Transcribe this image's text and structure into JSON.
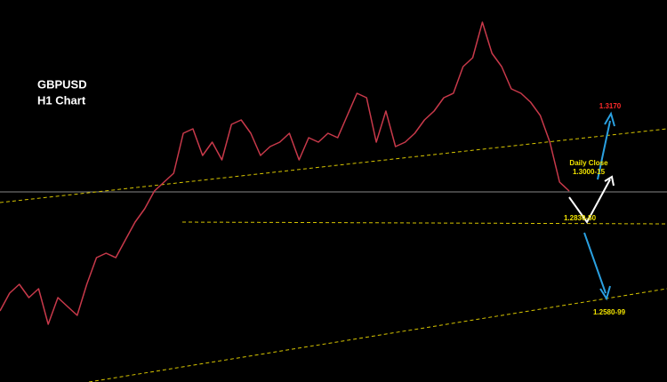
{
  "chart_data": {
    "type": "line",
    "title": "GBPUSD",
    "subtitle": "H1 Chart",
    "values": [
      1.233,
      1.243,
      1.248,
      1.2405,
      1.2455,
      1.2255,
      1.2405,
      1.2355,
      1.2305,
      1.248,
      1.263,
      1.2655,
      1.263,
      1.273,
      1.283,
      1.2905,
      1.3005,
      1.3055,
      1.3105,
      1.333,
      1.3355,
      1.3205,
      1.328,
      1.318,
      1.338,
      1.3405,
      1.333,
      1.3205,
      1.3255,
      1.328,
      1.333,
      1.318,
      1.3305,
      1.328,
      1.333,
      1.3305,
      1.343,
      1.3555,
      1.353,
      1.328,
      1.3455,
      1.3255,
      1.328,
      1.333,
      1.3405,
      1.3455,
      1.353,
      1.3555,
      1.3705,
      1.3755,
      1.3955,
      1.378,
      1.3705,
      1.358,
      1.3555,
      1.3505,
      1.343,
      1.328,
      1.3055,
      1.3005
    ],
    "color": "#c8394a",
    "ylim": [
      1.193,
      1.408
    ],
    "annotations": [
      "1.3170",
      "Daily Close",
      "1.3000-15",
      "1.2830-50",
      "1.2580-99"
    ]
  }
}
